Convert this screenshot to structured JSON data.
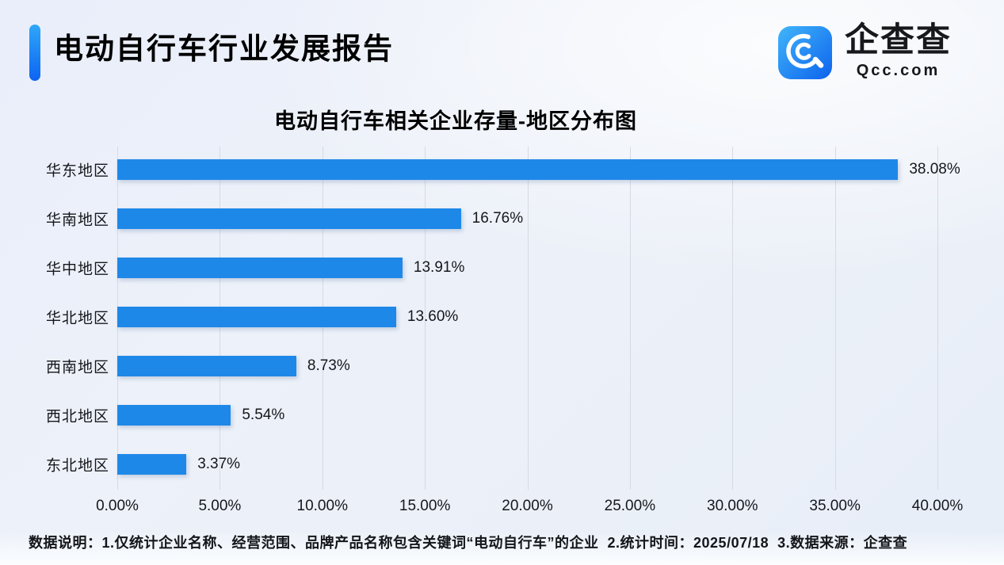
{
  "header": {
    "title": "电动自行车行业发展报告"
  },
  "logo": {
    "name": "企查查",
    "domain": "Qcc.com",
    "icon": "qcc-magnifier-icon"
  },
  "chart_data": {
    "type": "bar",
    "orientation": "horizontal",
    "title": "电动自行车相关企业存量-地区分布图",
    "categories": [
      "华东地区",
      "华南地区",
      "华中地区",
      "华北地区",
      "西南地区",
      "西北地区",
      "东北地区"
    ],
    "values": [
      38.08,
      16.76,
      13.91,
      13.6,
      8.73,
      5.54,
      3.37
    ],
    "value_labels": [
      "38.08%",
      "16.76%",
      "13.91%",
      "13.60%",
      "8.73%",
      "5.54%",
      "3.37%"
    ],
    "x_ticks": [
      0,
      5,
      10,
      15,
      20,
      25,
      30,
      35,
      40
    ],
    "x_tick_labels": [
      "0.00%",
      "5.00%",
      "10.00%",
      "15.00%",
      "20.00%",
      "25.00%",
      "30.00%",
      "35.00%",
      "40.00%"
    ],
    "xlim": [
      0,
      40
    ],
    "xlabel": "",
    "ylabel": "",
    "grid": "vertical",
    "legend": "none",
    "bar_color": "#1E88E8"
  },
  "footer": {
    "note": "数据说明：1.仅统计企业名称、经营范围、品牌产品名称包含关键词“电动自行车”的企业  2.统计时间：2025/07/18  3.数据来源：企查查"
  },
  "colors": {
    "bar": "#1E88E8",
    "accent_top": "#2EA7F9",
    "accent_bottom": "#0D64F2",
    "gridline": "#D6DAE3",
    "background": "#EDF1F9",
    "text": "#14161A"
  }
}
